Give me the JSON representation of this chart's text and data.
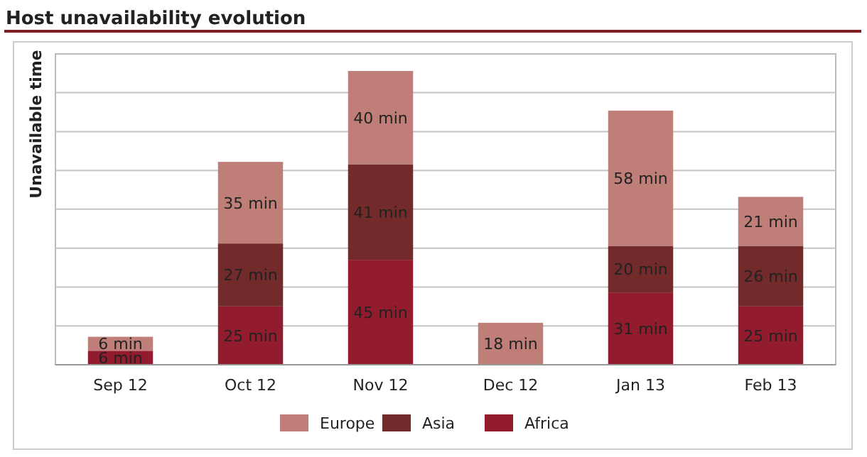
{
  "chart_data": {
    "type": "bar",
    "title": "Host unavailability evolution",
    "ylabel": "Unavailable time",
    "categories": [
      "Sep 12",
      "Oct 12",
      "Nov 12",
      "Dec 12",
      "Jan 13",
      "Feb 13"
    ],
    "stacked": true,
    "ylim": [
      0,
      133.3
    ],
    "yticks": [
      {
        "value": 16.7,
        "label": null
      },
      {
        "value": 33.3,
        "label": null
      },
      {
        "value": 50,
        "label": null
      },
      {
        "value": 66.7,
        "label": null
      },
      {
        "value": 83.3,
        "label": null
      },
      {
        "value": 100,
        "label": null
      },
      {
        "value": 116.7,
        "label": null
      }
    ],
    "tick_labels": "x",
    "grid": "y",
    "legend": "bottom",
    "series": [
      {
        "name": "Africa",
        "color": "#931b2e",
        "values": [
          6,
          25,
          45,
          null,
          31,
          25
        ],
        "value_labels": [
          "6 min",
          "25 min",
          "45 min",
          null,
          "31 min",
          "25 min"
        ]
      },
      {
        "name": "Asia",
        "color": "#722a2a",
        "values": [
          null,
          27,
          41,
          null,
          20,
          26
        ],
        "value_labels": [
          null,
          "27 min",
          "41 min",
          null,
          "20 min",
          "26 min"
        ]
      },
      {
        "name": "Europe",
        "color": "#bf7f78",
        "values": [
          6,
          35,
          40,
          18,
          58,
          21
        ],
        "value_labels": [
          "6 min",
          "35 min",
          "40 min",
          "18 min",
          "58 min",
          "21 min"
        ]
      }
    ]
  }
}
